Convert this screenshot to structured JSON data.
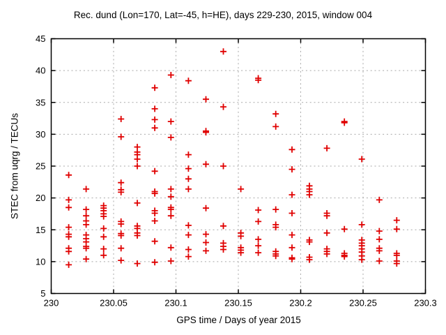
{
  "title": "Rec. dund (Lon=170, Lat=-45, h=HE), days 229-230, 2015, window 004",
  "chart_data": {
    "type": "scatter",
    "title": "Rec. dund (Lon=170, Lat=-45, h=HE), days 229-230, 2015, window 004",
    "xlabel": "GPS time / Days of year 2015",
    "ylabel": "STEC from uqrg / TECUs",
    "xlim": [
      230,
      230.3
    ],
    "ylim": [
      5,
      45
    ],
    "xticks": {
      "values": [
        230,
        230.05,
        230.1,
        230.15,
        230.2,
        230.25,
        230.3
      ],
      "labels": [
        "230",
        "230.05",
        "230.1",
        "230.15",
        "230.2",
        "230.25",
        "230.3"
      ]
    },
    "yticks": {
      "values": [
        5,
        10,
        15,
        20,
        25,
        30,
        35,
        40,
        45
      ],
      "labels": [
        "5",
        "10",
        "15",
        "20",
        "25",
        "30",
        "35",
        "40",
        "45"
      ]
    },
    "grid": true,
    "legend": "none",
    "marker": {
      "shape": "plus",
      "color": "#e00000",
      "size": 9
    },
    "grid_color": "#a8a8a8",
    "border_color": "#000000",
    "points": [
      [
        230.014,
        23.6
      ],
      [
        230.014,
        19.7
      ],
      [
        230.014,
        18.5
      ],
      [
        230.014,
        15.4
      ],
      [
        230.014,
        14.3
      ],
      [
        230.014,
        13.9
      ],
      [
        230.014,
        12.1
      ],
      [
        230.014,
        11.6
      ],
      [
        230.014,
        9.5
      ],
      [
        230.028,
        21.4
      ],
      [
        230.028,
        18.2
      ],
      [
        230.028,
        17.2
      ],
      [
        230.028,
        16.4
      ],
      [
        230.028,
        15.8
      ],
      [
        230.028,
        14.2
      ],
      [
        230.028,
        13.6
      ],
      [
        230.028,
        13.1
      ],
      [
        230.028,
        12.4
      ],
      [
        230.028,
        12.1
      ],
      [
        230.028,
        10.4
      ],
      [
        230.042,
        18.8
      ],
      [
        230.042,
        18.4
      ],
      [
        230.042,
        18.0
      ],
      [
        230.042,
        17.5
      ],
      [
        230.042,
        17.1
      ],
      [
        230.042,
        15.2
      ],
      [
        230.042,
        13.9
      ],
      [
        230.042,
        12.0
      ],
      [
        230.042,
        11.0
      ],
      [
        230.056,
        32.4
      ],
      [
        230.056,
        29.6
      ],
      [
        230.056,
        22.4
      ],
      [
        230.056,
        21.3
      ],
      [
        230.056,
        20.9
      ],
      [
        230.056,
        16.3
      ],
      [
        230.056,
        15.9
      ],
      [
        230.056,
        14.4
      ],
      [
        230.056,
        14.1
      ],
      [
        230.056,
        12.1
      ],
      [
        230.056,
        10.2
      ],
      [
        230.069,
        28.0
      ],
      [
        230.069,
        27.2
      ],
      [
        230.069,
        26.8
      ],
      [
        230.069,
        26.1
      ],
      [
        230.069,
        25.0
      ],
      [
        230.069,
        19.2
      ],
      [
        230.069,
        15.6
      ],
      [
        230.069,
        15.2
      ],
      [
        230.069,
        14.5
      ],
      [
        230.069,
        14.1
      ],
      [
        230.069,
        9.7
      ],
      [
        230.083,
        37.3
      ],
      [
        230.083,
        34.0
      ],
      [
        230.083,
        32.3
      ],
      [
        230.083,
        31.0
      ],
      [
        230.083,
        24.2
      ],
      [
        230.083,
        21.0
      ],
      [
        230.083,
        20.7
      ],
      [
        230.083,
        18.0
      ],
      [
        230.083,
        17.6
      ],
      [
        230.083,
        16.4
      ],
      [
        230.083,
        13.2
      ],
      [
        230.083,
        9.9
      ],
      [
        230.096,
        39.3
      ],
      [
        230.096,
        32.0
      ],
      [
        230.096,
        29.5
      ],
      [
        230.096,
        21.4
      ],
      [
        230.096,
        20.2
      ],
      [
        230.096,
        18.5
      ],
      [
        230.096,
        18.2
      ],
      [
        230.096,
        17.2
      ],
      [
        230.096,
        12.2
      ],
      [
        230.096,
        10.1
      ],
      [
        230.11,
        38.4
      ],
      [
        230.11,
        26.8
      ],
      [
        230.11,
        24.6
      ],
      [
        230.11,
        23.0
      ],
      [
        230.11,
        21.4
      ],
      [
        230.11,
        15.7
      ],
      [
        230.11,
        14.2
      ],
      [
        230.11,
        11.9
      ],
      [
        230.11,
        10.8
      ],
      [
        230.124,
        35.5
      ],
      [
        230.124,
        30.5
      ],
      [
        230.124,
        30.3
      ],
      [
        230.124,
        25.3
      ],
      [
        230.124,
        18.4
      ],
      [
        230.124,
        14.3
      ],
      [
        230.124,
        13.0
      ],
      [
        230.124,
        11.7
      ],
      [
        230.138,
        43.0
      ],
      [
        230.138,
        34.3
      ],
      [
        230.138,
        25.0
      ],
      [
        230.138,
        15.6
      ],
      [
        230.138,
        12.9
      ],
      [
        230.138,
        12.4
      ],
      [
        230.138,
        11.9
      ],
      [
        230.152,
        21.4
      ],
      [
        230.152,
        14.5
      ],
      [
        230.152,
        14.0
      ],
      [
        230.152,
        12.2
      ],
      [
        230.152,
        11.8
      ],
      [
        230.152,
        11.4
      ],
      [
        230.166,
        38.8
      ],
      [
        230.166,
        38.5
      ],
      [
        230.166,
        18.1
      ],
      [
        230.166,
        16.3
      ],
      [
        230.166,
        13.5
      ],
      [
        230.166,
        12.5
      ],
      [
        230.166,
        11.4
      ],
      [
        230.18,
        33.2
      ],
      [
        230.18,
        31.2
      ],
      [
        230.18,
        18.2
      ],
      [
        230.18,
        15.8
      ],
      [
        230.18,
        15.4
      ],
      [
        230.18,
        11.6
      ],
      [
        230.18,
        11.2
      ],
      [
        230.18,
        10.9
      ],
      [
        230.193,
        27.6
      ],
      [
        230.193,
        24.5
      ],
      [
        230.193,
        20.5
      ],
      [
        230.193,
        17.6
      ],
      [
        230.193,
        14.2
      ],
      [
        230.193,
        12.2
      ],
      [
        230.193,
        10.6
      ],
      [
        230.193,
        10.4
      ],
      [
        230.207,
        21.9
      ],
      [
        230.207,
        21.4
      ],
      [
        230.207,
        21.0
      ],
      [
        230.207,
        20.5
      ],
      [
        230.207,
        13.4
      ],
      [
        230.207,
        13.1
      ],
      [
        230.207,
        10.7
      ],
      [
        230.207,
        10.3
      ],
      [
        230.221,
        27.8
      ],
      [
        230.221,
        17.6
      ],
      [
        230.221,
        17.2
      ],
      [
        230.221,
        14.5
      ],
      [
        230.221,
        12.0
      ],
      [
        230.221,
        11.6
      ],
      [
        230.221,
        11.2
      ],
      [
        230.235,
        32.0
      ],
      [
        230.235,
        31.8
      ],
      [
        230.235,
        15.1
      ],
      [
        230.235,
        11.3
      ],
      [
        230.235,
        11.0
      ],
      [
        230.235,
        10.8
      ],
      [
        230.249,
        26.1
      ],
      [
        230.249,
        15.8
      ],
      [
        230.249,
        13.4
      ],
      [
        230.249,
        12.9
      ],
      [
        230.249,
        12.5
      ],
      [
        230.249,
        12.0
      ],
      [
        230.249,
        11.5
      ],
      [
        230.249,
        10.9
      ],
      [
        230.249,
        10.3
      ],
      [
        230.263,
        19.7
      ],
      [
        230.263,
        14.8
      ],
      [
        230.263,
        13.5
      ],
      [
        230.263,
        12.1
      ],
      [
        230.263,
        11.7
      ],
      [
        230.263,
        10.1
      ],
      [
        230.277,
        16.5
      ],
      [
        230.277,
        15.1
      ],
      [
        230.277,
        11.3
      ],
      [
        230.277,
        11.0
      ],
      [
        230.277,
        10.1
      ],
      [
        230.277,
        9.7
      ]
    ]
  }
}
